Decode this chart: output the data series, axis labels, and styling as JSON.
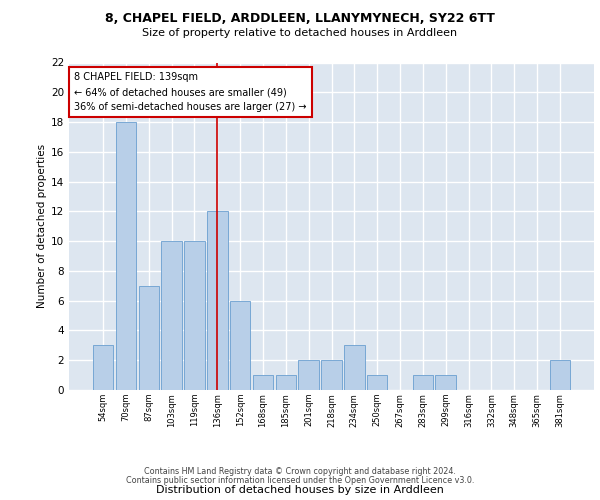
{
  "title_line1": "8, CHAPEL FIELD, ARDDLEEN, LLANYMYNECH, SY22 6TT",
  "title_line2": "Size of property relative to detached houses in Arddleen",
  "xlabel": "Distribution of detached houses by size in Arddleen",
  "ylabel": "Number of detached properties",
  "categories": [
    "54sqm",
    "70sqm",
    "87sqm",
    "103sqm",
    "119sqm",
    "136sqm",
    "152sqm",
    "168sqm",
    "185sqm",
    "201sqm",
    "218sqm",
    "234sqm",
    "250sqm",
    "267sqm",
    "283sqm",
    "299sqm",
    "316sqm",
    "332sqm",
    "348sqm",
    "365sqm",
    "381sqm"
  ],
  "values": [
    3,
    18,
    7,
    10,
    10,
    12,
    6,
    1,
    1,
    2,
    2,
    3,
    1,
    0,
    1,
    1,
    0,
    0,
    0,
    0,
    2
  ],
  "bar_color": "#b8cfe8",
  "bar_edge_color": "#6a9fd0",
  "highlight_index": 5,
  "highlight_line_color": "#cc0000",
  "annotation_text": "8 CHAPEL FIELD: 139sqm\n← 64% of detached houses are smaller (49)\n36% of semi-detached houses are larger (27) →",
  "annotation_box_color": "#ffffff",
  "annotation_box_edge": "#cc0000",
  "ylim": [
    0,
    22
  ],
  "yticks": [
    0,
    2,
    4,
    6,
    8,
    10,
    12,
    14,
    16,
    18,
    20,
    22
  ],
  "background_color": "#dde6f0",
  "grid_color": "#ffffff",
  "footer_line1": "Contains HM Land Registry data © Crown copyright and database right 2024.",
  "footer_line2": "Contains public sector information licensed under the Open Government Licence v3.0."
}
